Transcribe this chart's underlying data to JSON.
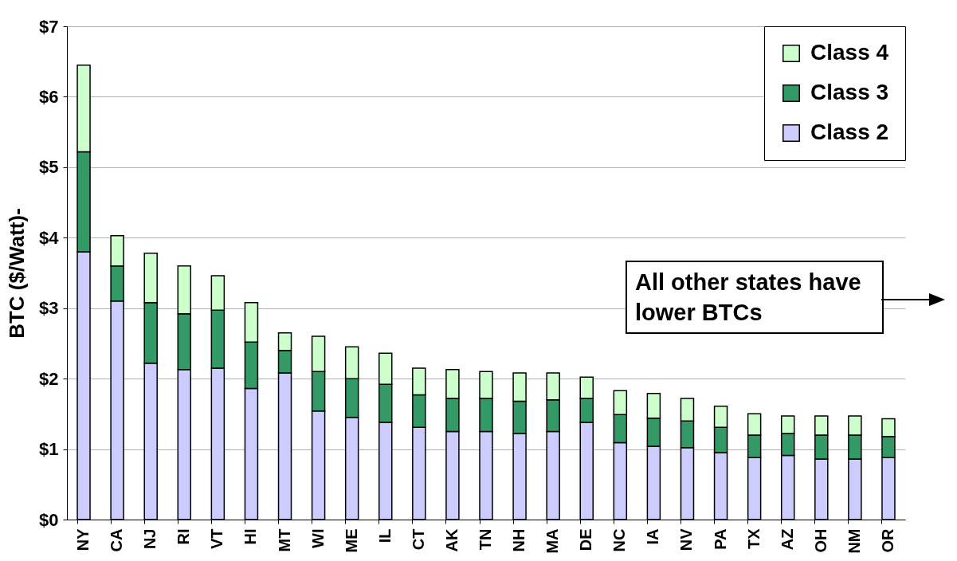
{
  "chart_data": {
    "type": "bar",
    "stacked": true,
    "ylabel": "BTC ($/Watt)-",
    "categories": [
      "NY",
      "CA",
      "NJ",
      "RI",
      "VT",
      "HI",
      "MT",
      "WI",
      "ME",
      "IL",
      "CT",
      "AK",
      "TN",
      "NH",
      "MA",
      "DE",
      "NC",
      "IA",
      "NV",
      "PA",
      "TX",
      "AZ",
      "OH",
      "NM",
      "OR"
    ],
    "series": [
      {
        "name": "Class 2",
        "color": "#ccccff",
        "values": [
          3.8,
          3.1,
          2.22,
          2.13,
          2.15,
          1.86,
          2.08,
          1.54,
          1.45,
          1.38,
          1.31,
          1.25,
          1.25,
          1.22,
          1.25,
          1.38,
          1.09,
          1.04,
          1.02,
          0.95,
          0.88,
          0.91,
          0.86,
          0.86,
          0.88
        ]
      },
      {
        "name": "Class 3",
        "color": "#339966",
        "values": [
          1.42,
          0.5,
          0.86,
          0.79,
          0.82,
          0.66,
          0.32,
          0.56,
          0.55,
          0.54,
          0.46,
          0.47,
          0.47,
          0.46,
          0.45,
          0.34,
          0.4,
          0.4,
          0.38,
          0.36,
          0.32,
          0.31,
          0.34,
          0.34,
          0.3
        ]
      },
      {
        "name": "Class 4",
        "color": "#ccffcc",
        "values": [
          1.23,
          0.43,
          0.7,
          0.68,
          0.49,
          0.56,
          0.25,
          0.5,
          0.45,
          0.44,
          0.38,
          0.41,
          0.38,
          0.4,
          0.38,
          0.3,
          0.34,
          0.35,
          0.32,
          0.3,
          0.3,
          0.25,
          0.27,
          0.27,
          0.25
        ]
      }
    ],
    "ylim": [
      0,
      7
    ],
    "yticks": [
      {
        "value": 0,
        "label": "$0"
      },
      {
        "value": 1,
        "label": "$1"
      },
      {
        "value": 2,
        "label": "$2"
      },
      {
        "value": 3,
        "label": "$3"
      },
      {
        "value": 4,
        "label": "$4"
      },
      {
        "value": 5,
        "label": "$5"
      },
      {
        "value": 6,
        "label": "$6"
      },
      {
        "value": 7,
        "label": "$7"
      }
    ],
    "grid": "y",
    "legend": "top right",
    "annotations": [
      "All other states have lower BTCs"
    ]
  }
}
